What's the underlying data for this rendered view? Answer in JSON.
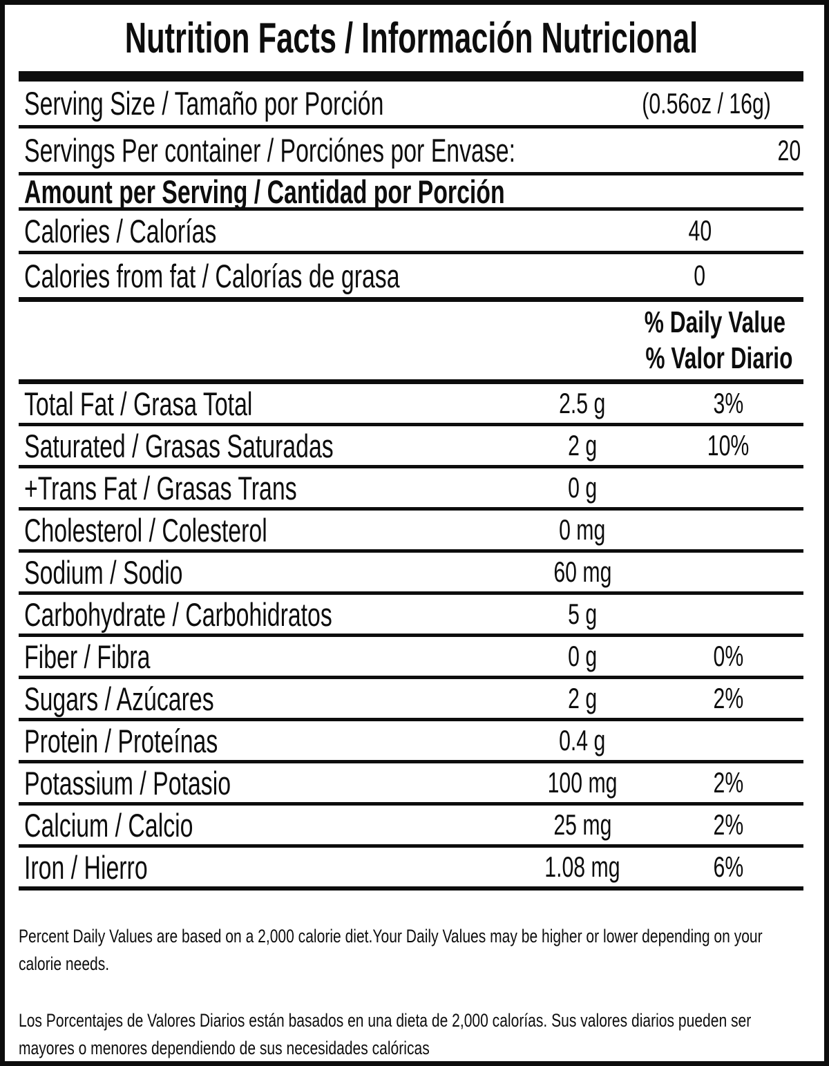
{
  "label": {
    "title": "Nutrition Facts / Información Nutricional",
    "serving_size": {
      "label": "Serving Size / Tamaño por Porción",
      "value": "(0.56oz / 16g)"
    },
    "servings_per_container": {
      "label": "Servings Per container / Porciónes por Envase:",
      "value": "20"
    },
    "amount_header": "Amount per Serving / Cantidad por Porción",
    "calories": {
      "label": "Calories / Calorías",
      "value": "40"
    },
    "calories_from_fat": {
      "label": "Calories from fat / Calorías de grasa",
      "value": "0"
    },
    "daily_value_header": {
      "line1": "% Daily Value",
      "line2": "% Valor Diario"
    },
    "nutrients": [
      {
        "label": "Total Fat / Grasa Total",
        "amount": "2.5 g",
        "dv": "3%"
      },
      {
        "label": "Saturated / Grasas Saturadas",
        "amount": "2 g",
        "dv": "10%"
      },
      {
        "label": "+Trans Fat / Grasas Trans",
        "amount": "0 g",
        "dv": ""
      },
      {
        "label": "Cholesterol / Colesterol",
        "amount": "0 mg",
        "dv": ""
      },
      {
        "label": "Sodium / Sodio",
        "amount": "60 mg",
        "dv": ""
      },
      {
        "label": "Carbohydrate / Carbohidratos",
        "amount": "5 g",
        "dv": ""
      },
      {
        "label": "Fiber / Fibra",
        "amount": "0 g",
        "dv": "0%"
      },
      {
        "label": "Sugars / Azúcares",
        "amount": "2 g",
        "dv": "2%"
      },
      {
        "label": "Protein / Proteínas",
        "amount": "0.4 g",
        "dv": ""
      },
      {
        "label": "Potassium / Potasio",
        "amount": "100 mg",
        "dv": "2%"
      },
      {
        "label": "Calcium / Calcio",
        "amount": "25 mg",
        "dv": "2%"
      },
      {
        "label": "Iron / Hierro",
        "amount": "1.08 mg",
        "dv": "6%"
      }
    ],
    "footnotes": {
      "english": "Percent Daily Values are based on a 2,000 calorie diet.Your Daily Values may be higher or lower depending on your calorie needs.",
      "spanish": "Los Porcentajes de Valores Diarios están basados en una dieta de 2,000 calorías. Sus valores diarios pueden ser mayores o menores dependiendo de sus necesidades calóricas"
    }
  }
}
